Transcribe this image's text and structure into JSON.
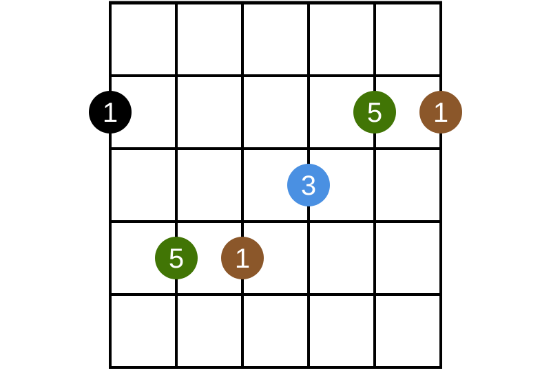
{
  "diagram": {
    "strings": 6,
    "frets_shown": 5,
    "colors": {
      "grid": "#000000",
      "root_open": "#000000",
      "root": "#8b572a",
      "fifth": "#417505",
      "third": "#4a90e2",
      "label": "#ffffff"
    },
    "markers": [
      {
        "string": 1,
        "fret": 2,
        "label": "1",
        "role": "root_open"
      },
      {
        "string": 5,
        "fret": 2,
        "label": "5",
        "role": "fifth"
      },
      {
        "string": 6,
        "fret": 2,
        "label": "1",
        "role": "root"
      },
      {
        "string": 4,
        "fret": 3,
        "label": "3",
        "role": "third"
      },
      {
        "string": 2,
        "fret": 4,
        "label": "5",
        "role": "fifth"
      },
      {
        "string": 3,
        "fret": 4,
        "label": "1",
        "role": "root"
      }
    ]
  }
}
